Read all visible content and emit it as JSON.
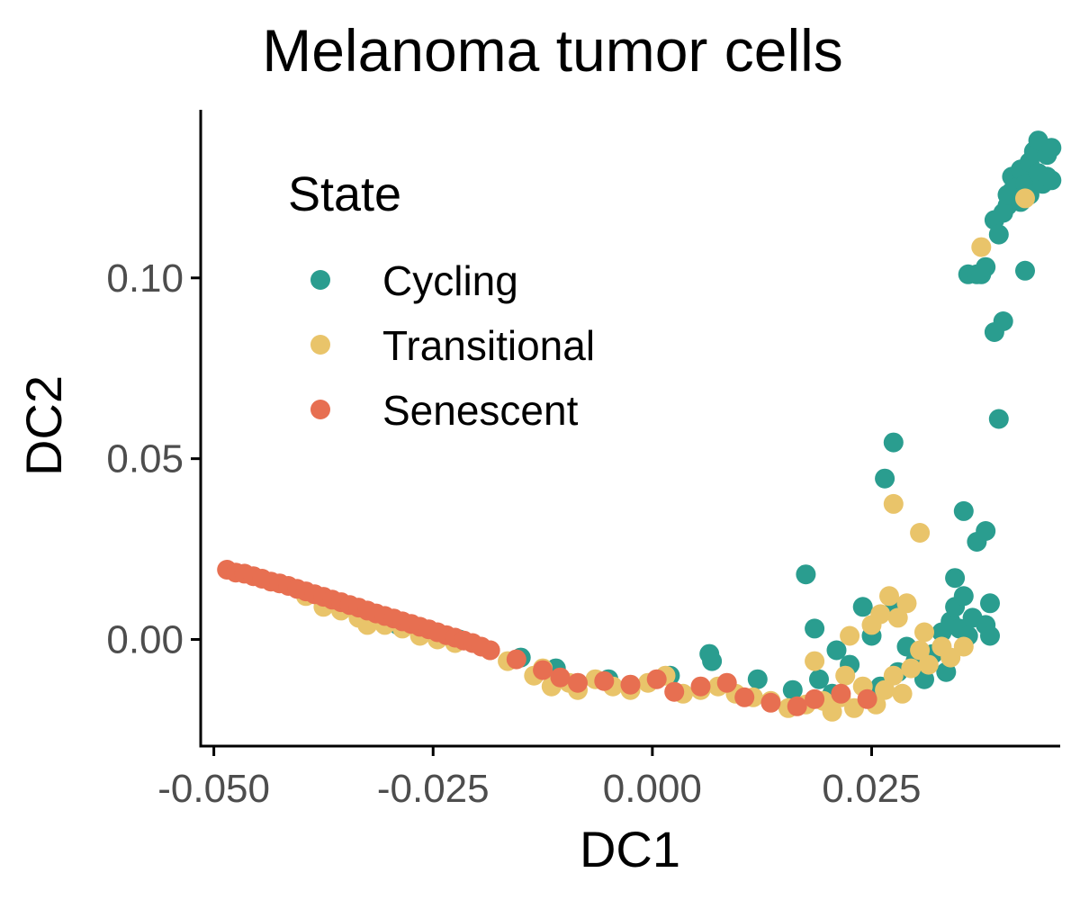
{
  "chart_data": {
    "type": "scatter",
    "title": "Melanoma tumor cells",
    "xlabel": "DC1",
    "ylabel": "DC2",
    "xlim": [
      -0.0515,
      0.0465
    ],
    "ylim": [
      -0.0295,
      0.1465
    ],
    "x_ticks": [
      {
        "value": -0.05,
        "label": "-0.050"
      },
      {
        "value": -0.025,
        "label": "-0.025"
      },
      {
        "value": 0.0,
        "label": "0.000"
      },
      {
        "value": 0.025,
        "label": "0.025"
      }
    ],
    "y_ticks": [
      {
        "value": 0.0,
        "label": "0.00"
      },
      {
        "value": 0.05,
        "label": "0.05"
      },
      {
        "value": 0.1,
        "label": "0.10"
      }
    ],
    "grid": false,
    "legend": {
      "title": "State",
      "position": "top-left"
    },
    "series": [
      {
        "name": "Cycling",
        "color": "#2a9d8f",
        "points": [
          [
            -0.029,
            0.004
          ],
          [
            -0.022,
            0.0
          ],
          [
            -0.015,
            -0.005
          ],
          [
            -0.011,
            -0.008
          ],
          [
            -0.005,
            -0.011
          ],
          [
            0.002,
            -0.01
          ],
          [
            0.0065,
            -0.004
          ],
          [
            0.0068,
            -0.006
          ],
          [
            0.012,
            -0.011
          ],
          [
            0.016,
            -0.014
          ],
          [
            0.0175,
            0.018
          ],
          [
            0.019,
            -0.011
          ],
          [
            0.0185,
            0.003
          ],
          [
            0.0205,
            -0.015
          ],
          [
            0.021,
            -0.003
          ],
          [
            0.0225,
            -0.007
          ],
          [
            0.024,
            0.009
          ],
          [
            0.025,
            0.001
          ],
          [
            0.026,
            -0.013
          ],
          [
            0.0265,
            0.0445
          ],
          [
            0.0275,
            0.0545
          ],
          [
            0.0275,
            0.008
          ],
          [
            0.028,
            -0.009
          ],
          [
            0.029,
            -0.002
          ],
          [
            0.03,
            -0.006
          ],
          [
            0.031,
            -0.011
          ],
          [
            0.032,
            -0.004
          ],
          [
            0.033,
            0.002
          ],
          [
            0.0335,
            -0.009
          ],
          [
            0.034,
            0.005
          ],
          [
            0.0345,
            0.017
          ],
          [
            0.0345,
            0.009
          ],
          [
            0.035,
            0.003
          ],
          [
            0.0355,
            0.0355
          ],
          [
            0.0355,
            0.012
          ],
          [
            0.036,
            0.001
          ],
          [
            0.0365,
            0.006
          ],
          [
            0.036,
            0.101
          ],
          [
            0.037,
            0.101
          ],
          [
            0.037,
            0.027
          ],
          [
            0.0375,
            0.101
          ],
          [
            0.038,
            0.103
          ],
          [
            0.038,
            0.03
          ],
          [
            0.038,
            0.004
          ],
          [
            0.0385,
            0.01
          ],
          [
            0.0385,
            0.001
          ],
          [
            0.039,
            0.085
          ],
          [
            0.039,
            0.116
          ],
          [
            0.0395,
            0.061
          ],
          [
            0.0395,
            0.112
          ],
          [
            0.04,
            0.088
          ],
          [
            0.04,
            0.118
          ],
          [
            0.0405,
            0.12
          ],
          [
            0.0405,
            0.123
          ],
          [
            0.041,
            0.124
          ],
          [
            0.041,
            0.128
          ],
          [
            0.0415,
            0.125
          ],
          [
            0.042,
            0.13
          ],
          [
            0.042,
            0.121
          ],
          [
            0.0425,
            0.102
          ],
          [
            0.0425,
            0.126
          ],
          [
            0.043,
            0.132
          ],
          [
            0.043,
            0.123
          ],
          [
            0.0435,
            0.135
          ],
          [
            0.044,
            0.129
          ],
          [
            0.044,
            0.138
          ],
          [
            0.0445,
            0.126
          ],
          [
            0.045,
            0.134
          ],
          [
            0.045,
            0.128
          ],
          [
            0.0455,
            0.136
          ],
          [
            0.0455,
            0.127
          ]
        ]
      },
      {
        "name": "Transitional",
        "color": "#e9c46a",
        "points": [
          [
            -0.0395,
            0.012
          ],
          [
            -0.0375,
            0.009
          ],
          [
            -0.0355,
            0.008
          ],
          [
            -0.0335,
            0.006
          ],
          [
            -0.0325,
            0.004
          ],
          [
            -0.0305,
            0.004
          ],
          [
            -0.0285,
            0.003
          ],
          [
            -0.0265,
            0.001
          ],
          [
            -0.0245,
            0.0
          ],
          [
            -0.0225,
            -0.001
          ],
          [
            -0.0185,
            -0.003
          ],
          [
            -0.0165,
            -0.006
          ],
          [
            -0.0135,
            -0.01
          ],
          [
            -0.0125,
            -0.008
          ],
          [
            -0.0115,
            -0.013
          ],
          [
            -0.0095,
            -0.012
          ],
          [
            -0.0085,
            -0.014
          ],
          [
            -0.0065,
            -0.011
          ],
          [
            -0.0045,
            -0.013
          ],
          [
            -0.0025,
            -0.014
          ],
          [
            -0.0005,
            -0.012
          ],
          [
            0.0015,
            -0.01
          ],
          [
            0.0035,
            -0.015
          ],
          [
            0.0055,
            -0.014
          ],
          [
            0.0075,
            -0.013
          ],
          [
            0.0095,
            -0.015
          ],
          [
            0.0115,
            -0.016
          ],
          [
            0.0135,
            -0.017
          ],
          [
            0.0155,
            -0.019
          ],
          [
            0.0175,
            -0.018
          ],
          [
            0.0185,
            -0.006
          ],
          [
            0.0195,
            -0.017
          ],
          [
            0.0205,
            -0.02
          ],
          [
            0.0215,
            -0.016
          ],
          [
            0.022,
            -0.01
          ],
          [
            0.0225,
            0.001
          ],
          [
            0.023,
            -0.019
          ],
          [
            0.024,
            -0.013
          ],
          [
            0.025,
            0.004
          ],
          [
            0.0255,
            -0.018
          ],
          [
            0.026,
            0.007
          ],
          [
            0.0265,
            -0.014
          ],
          [
            0.027,
            0.012
          ],
          [
            0.0275,
            0.0375
          ],
          [
            0.0275,
            -0.01
          ],
          [
            0.028,
            0.006
          ],
          [
            0.0285,
            -0.015
          ],
          [
            0.029,
            0.01
          ],
          [
            0.0295,
            -0.008
          ],
          [
            0.0305,
            0.0295
          ],
          [
            0.0305,
            -0.003
          ],
          [
            0.031,
            0.002
          ],
          [
            0.0315,
            -0.007
          ],
          [
            0.033,
            -0.002
          ],
          [
            0.034,
            -0.005
          ],
          [
            0.0355,
            -0.002
          ],
          [
            0.0375,
            0.1085
          ],
          [
            0.0425,
            0.122
          ]
        ]
      },
      {
        "name": "Senescent",
        "color": "#e76f51",
        "points": [
          [
            -0.0485,
            0.0193
          ],
          [
            -0.0475,
            0.0185
          ],
          [
            -0.0465,
            0.0182
          ],
          [
            -0.0455,
            0.0175
          ],
          [
            -0.0445,
            0.0168
          ],
          [
            -0.0435,
            0.016
          ],
          [
            -0.0425,
            0.0155
          ],
          [
            -0.0415,
            0.0148
          ],
          [
            -0.0405,
            0.014
          ],
          [
            -0.0395,
            0.0133
          ],
          [
            -0.0385,
            0.0125
          ],
          [
            -0.0375,
            0.0118
          ],
          [
            -0.0365,
            0.011
          ],
          [
            -0.0355,
            0.0103
          ],
          [
            -0.0345,
            0.0095
          ],
          [
            -0.0335,
            0.0088
          ],
          [
            -0.0325,
            0.008
          ],
          [
            -0.0315,
            0.0072
          ],
          [
            -0.0305,
            0.0065
          ],
          [
            -0.0295,
            0.0058
          ],
          [
            -0.0285,
            0.005
          ],
          [
            -0.0275,
            0.0043
          ],
          [
            -0.0265,
            0.0035
          ],
          [
            -0.0255,
            0.0028
          ],
          [
            -0.0245,
            0.002
          ],
          [
            -0.0235,
            0.0012
          ],
          [
            -0.0225,
            0.0005
          ],
          [
            -0.0215,
            -0.0003
          ],
          [
            -0.0205,
            -0.001
          ],
          [
            -0.0195,
            -0.002
          ],
          [
            -0.0185,
            -0.003
          ],
          [
            -0.0155,
            -0.0055
          ],
          [
            -0.0125,
            -0.0085
          ],
          [
            -0.0105,
            -0.0105
          ],
          [
            -0.0085,
            -0.012
          ],
          [
            -0.0055,
            -0.0115
          ],
          [
            -0.0025,
            -0.0125
          ],
          [
            0.0005,
            -0.011
          ],
          [
            0.0025,
            -0.0145
          ],
          [
            0.0055,
            -0.013
          ],
          [
            0.0085,
            -0.012
          ],
          [
            0.0105,
            -0.016
          ],
          [
            0.0135,
            -0.0175
          ],
          [
            0.0165,
            -0.0185
          ],
          [
            0.0185,
            -0.0165
          ],
          [
            0.0215,
            -0.015
          ],
          [
            0.0245,
            -0.0165
          ]
        ]
      }
    ]
  }
}
